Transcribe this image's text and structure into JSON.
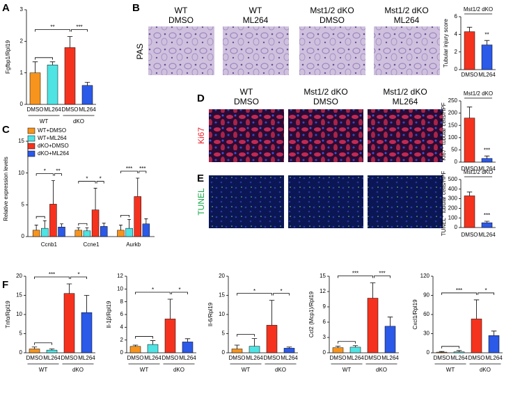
{
  "panel_labels": [
    "A",
    "B",
    "C",
    "D",
    "E",
    "F"
  ],
  "pas_panel": {
    "row_label": "PAS",
    "columns": [
      [
        "WT",
        "DMSO"
      ],
      [
        "WT",
        "ML264"
      ],
      [
        "Mst1/2 dKO",
        "DMSO"
      ],
      [
        "Mst1/2 dKO",
        "ML264"
      ]
    ]
  },
  "staining_panel": {
    "rows": [
      "Ki67",
      "TUNEL"
    ],
    "columns": [
      [
        "WT",
        "DMSO"
      ],
      [
        "Mst1/2 dKO",
        "DMSO"
      ],
      [
        "Mst1/2 dKO",
        "ML264"
      ]
    ]
  },
  "chart_data": [
    {
      "type": "bar",
      "ylabel": "Fgfbp1/Rpl19",
      "categories": [
        "DMSO",
        "ML264",
        "DMSO",
        "ML264"
      ],
      "values": [
        1.0,
        1.25,
        1.8,
        0.6
      ],
      "errors": [
        0.35,
        0.1,
        0.35,
        0.1
      ],
      "colors": [
        "#f7941d",
        "#4fe3e3",
        "#f5321e",
        "#2b59e8"
      ],
      "ylim": [
        0,
        3
      ],
      "yticks": [
        0,
        1,
        2,
        3
      ],
      "group_labels": [
        "WT",
        "dKO"
      ],
      "significance": [
        "**",
        "***"
      ]
    },
    {
      "type": "bar",
      "title": "Mst1/2 dKO",
      "ylabel": "Tubular injury score",
      "categories": [
        "DMSO",
        "ML264"
      ],
      "values": [
        4.3,
        2.8
      ],
      "errors": [
        0.5,
        0.5
      ],
      "colors": [
        "#f5321e",
        "#2b59e8"
      ],
      "ylim": [
        0,
        6
      ],
      "yticks": [
        0,
        2,
        4,
        6
      ],
      "significance": [
        "**"
      ]
    },
    {
      "type": "bar",
      "ylabel": "Relative expression levels",
      "categories": [
        "Ccnb1",
        "Ccne1",
        "Aurkb"
      ],
      "series": [
        {
          "name": "WT+DMSO",
          "color": "#f7941d",
          "values": [
            1.0,
            1.0,
            1.0
          ],
          "errors": [
            0.8,
            0.4,
            0.8
          ]
        },
        {
          "name": "WT+ML264",
          "color": "#4fe3e3",
          "values": [
            1.3,
            0.9,
            1.3
          ],
          "errors": [
            1.2,
            0.5,
            1.4
          ]
        },
        {
          "name": "dKO+DMSO",
          "color": "#f5321e",
          "values": [
            5.1,
            4.2,
            6.3
          ],
          "errors": [
            3.7,
            3.4,
            2.9
          ]
        },
        {
          "name": "dKO+ML264",
          "color": "#2b59e8",
          "values": [
            1.5,
            1.6,
            2.0
          ],
          "errors": [
            0.5,
            0.5,
            0.8
          ]
        }
      ],
      "ylim": [
        0,
        15
      ],
      "yticks": [
        0,
        5,
        10,
        15
      ],
      "legend": "upper left",
      "significance": [
        [
          "*",
          "**"
        ],
        [
          "*",
          "*"
        ],
        [
          "***",
          "***"
        ]
      ]
    },
    {
      "type": "bar",
      "title": "Mst1/2 dKO",
      "ylabel": "Ki67⁺ tubular cells/HPF",
      "categories": [
        "DMSO",
        "ML264"
      ],
      "values": [
        180,
        15
      ],
      "errors": [
        45,
        10
      ],
      "colors": [
        "#f5321e",
        "#2b59e8"
      ],
      "ylim": [
        0,
        250
      ],
      "yticks": [
        0,
        50,
        100,
        150,
        200,
        250
      ],
      "significance": [
        "***"
      ]
    },
    {
      "type": "bar",
      "title": "Mst1/2 dKO",
      "ylabel": "TUNEL⁺ tubular cells/HPF",
      "categories": [
        "DMSO",
        "ML264"
      ],
      "values": [
        330,
        50
      ],
      "errors": [
        40,
        15
      ],
      "colors": [
        "#f5321e",
        "#2b59e8"
      ],
      "ylim": [
        0,
        500
      ],
      "yticks": [
        0,
        100,
        200,
        300,
        400,
        500
      ],
      "significance": [
        "***"
      ]
    },
    {
      "type": "bar",
      "ylabel": "Tnfα/Rpl19",
      "categories": [
        "DMSO",
        "ML264",
        "DMSO",
        "ML264"
      ],
      "values": [
        1.0,
        0.7,
        15.5,
        10.5
      ],
      "errors": [
        0.5,
        0.3,
        2.5,
        4.5
      ],
      "colors": [
        "#f7941d",
        "#4fe3e3",
        "#f5321e",
        "#2b59e8"
      ],
      "ylim": [
        0,
        20
      ],
      "yticks": [
        0,
        5,
        10,
        15,
        20
      ],
      "group_labels": [
        "WT",
        "dKO"
      ],
      "significance": [
        "***",
        "*"
      ]
    },
    {
      "type": "bar",
      "ylabel": "Il-1β/Rpl19",
      "categories": [
        "DMSO",
        "ML264",
        "DMSO",
        "ML264"
      ],
      "values": [
        1.0,
        1.3,
        5.3,
        1.7
      ],
      "errors": [
        0.2,
        0.6,
        3.1,
        0.5
      ],
      "colors": [
        "#f7941d",
        "#4fe3e3",
        "#f5321e",
        "#2b59e8"
      ],
      "ylim": [
        0,
        12
      ],
      "yticks": [
        0,
        2,
        4,
        6,
        8,
        10,
        12
      ],
      "group_labels": [
        "WT",
        "dKO"
      ],
      "significance": [
        "*",
        "*"
      ]
    },
    {
      "type": "bar",
      "ylabel": "Il-6/Rpl19",
      "categories": [
        "DMSO",
        "ML264",
        "DMSO",
        "ML264"
      ],
      "values": [
        1.0,
        1.7,
        7.2,
        1.2
      ],
      "errors": [
        1.0,
        2.0,
        6.5,
        0.3
      ],
      "colors": [
        "#f7941d",
        "#4fe3e3",
        "#f5321e",
        "#2b59e8"
      ],
      "ylim": [
        0,
        20
      ],
      "yticks": [
        0,
        5,
        10,
        15,
        20
      ],
      "group_labels": [
        "WT",
        "dKO"
      ],
      "significance": [
        "*",
        "*"
      ]
    },
    {
      "type": "bar",
      "ylabel": "Ccl2 (Mcp1)/Rpl19",
      "categories": [
        "DMSO",
        "ML264",
        "DMSO",
        "ML264"
      ],
      "values": [
        1.0,
        1.1,
        10.7,
        5.2
      ],
      "errors": [
        0.3,
        0.3,
        3.0,
        1.8
      ],
      "colors": [
        "#f7941d",
        "#4fe3e3",
        "#f5321e",
        "#2b59e8"
      ],
      "ylim": [
        0,
        15
      ],
      "yticks": [
        0,
        3,
        6,
        9,
        12,
        15
      ],
      "group_labels": [
        "WT",
        "dKO"
      ],
      "significance": [
        "***",
        "***"
      ]
    },
    {
      "type": "bar",
      "ylabel": "Cxcl1/Rpl19",
      "categories": [
        "DMSO",
        "ML264",
        "DMSO",
        "ML264"
      ],
      "values": [
        1.0,
        1.5,
        53,
        27
      ],
      "errors": [
        1.0,
        2.0,
        30,
        7
      ],
      "colors": [
        "#f7941d",
        "#4fe3e3",
        "#f5321e",
        "#2b59e8"
      ],
      "ylim": [
        0,
        120
      ],
      "yticks": [
        0,
        30,
        60,
        90,
        120
      ],
      "group_labels": [
        "WT",
        "dKO"
      ],
      "significance": [
        "***",
        "*"
      ]
    }
  ]
}
